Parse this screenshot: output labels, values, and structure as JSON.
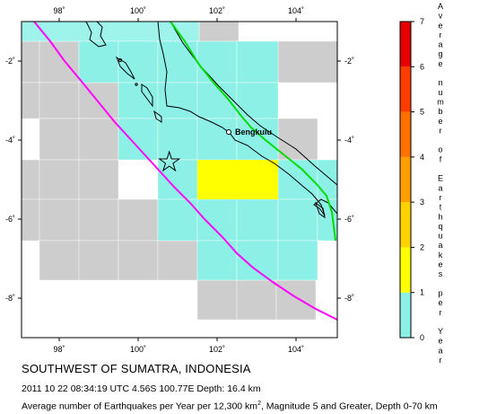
{
  "map": {
    "x_ticks": [
      "98˚",
      "100˚",
      "102˚",
      "104˚"
    ],
    "y_ticks": [
      "-2˚",
      "-4˚",
      "-6˚",
      "-8˚"
    ],
    "city_label": "Bengkulu"
  },
  "colorbar": {
    "title_letters": [
      "A",
      "v",
      "e",
      "r",
      "a",
      "g",
      "e",
      " ",
      "n",
      "u",
      "m",
      "b",
      "e",
      "r",
      " ",
      "o",
      "f",
      " ",
      "E",
      "a",
      "r",
      "t",
      "h",
      "q",
      "u",
      "a",
      "k",
      "e",
      "s",
      " ",
      "p",
      "e",
      "r",
      " ",
      "Y",
      "e",
      "a",
      "r"
    ],
    "ticks": [
      "0",
      "1",
      "2",
      "3",
      "4",
      "5",
      "6",
      "7"
    ],
    "colors": [
      "#8cf0e6",
      "#ffff00",
      "#ffd200",
      "#ffa000",
      "#ff7000",
      "#ff3c00",
      "#e60000"
    ]
  },
  "footer": {
    "title": "SOUTHWEST OF SUMATRA, INDONESIA",
    "event": "2011 10 22 08:34:19 UTC 4.56S 100.77E Depth: 16.4 km",
    "caption_pre": "Average number of Earthquakes per Year per 12,300 km",
    "caption_sup": "2",
    "caption_post": ", Magnitude 5 and Greater, Depth 0-70 km"
  }
}
